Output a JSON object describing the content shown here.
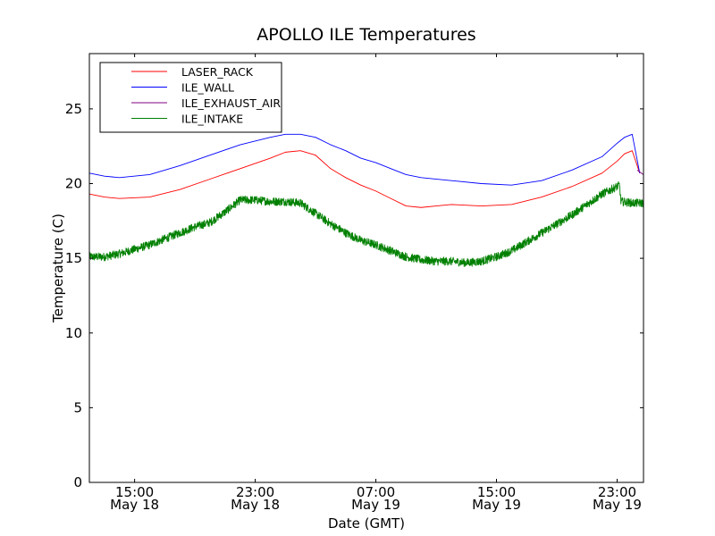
{
  "chart_data": {
    "type": "line",
    "title": "APOLLO ILE Temperatures",
    "xlabel": "Date (GMT)",
    "ylabel": "Temperature (C)",
    "ylim": [
      0,
      28.7
    ],
    "xlim": [
      "2011-05-18 12:00",
      "2011-05-20 00:45"
    ],
    "x_ticks": [
      {
        "x": "2011-05-18 15:00",
        "time": "15:00",
        "date": "May 18"
      },
      {
        "x": "2011-05-18 23:00",
        "time": "23:00",
        "date": "May 18"
      },
      {
        "x": "2011-05-19 07:00",
        "time": "07:00",
        "date": "May 19"
      },
      {
        "x": "2011-05-19 15:00",
        "time": "15:00",
        "date": "May 19"
      },
      {
        "x": "2011-05-19 23:00",
        "time": "23:00",
        "date": "May 19"
      }
    ],
    "y_ticks": [
      0,
      5,
      10,
      15,
      20,
      25
    ],
    "legend_position": "top-left",
    "legend": [
      "LASER_RACK",
      "ILE_WALL",
      "ILE_EXHAUST_AIR",
      "ILE_INTAKE"
    ],
    "series": [
      {
        "name": "LASER_RACK",
        "color": "#ff0000",
        "x": [
          "2011-05-18 12:00",
          "2011-05-18 13:00",
          "2011-05-18 14:00",
          "2011-05-18 16:00",
          "2011-05-18 18:00",
          "2011-05-18 20:00",
          "2011-05-18 22:00",
          "2011-05-19 00:00",
          "2011-05-19 01:00",
          "2011-05-19 02:00",
          "2011-05-19 03:00",
          "2011-05-19 04:00",
          "2011-05-19 05:00",
          "2011-05-19 06:00",
          "2011-05-19 07:00",
          "2011-05-19 08:00",
          "2011-05-19 09:00",
          "2011-05-19 10:00",
          "2011-05-19 11:00",
          "2011-05-19 12:00",
          "2011-05-19 14:00",
          "2011-05-19 16:00",
          "2011-05-19 18:00",
          "2011-05-19 20:00",
          "2011-05-19 22:00",
          "2011-05-19 23:00",
          "2011-05-19 23:30",
          "2011-05-20 00:00",
          "2011-05-20 00:30"
        ],
        "y": [
          19.3,
          19.1,
          19.0,
          19.1,
          19.6,
          20.3,
          21.0,
          21.7,
          22.1,
          22.2,
          21.9,
          21.0,
          20.4,
          19.9,
          19.5,
          19.0,
          18.5,
          18.4,
          18.5,
          18.6,
          18.5,
          18.6,
          19.1,
          19.8,
          20.7,
          21.5,
          22.0,
          22.2,
          20.7
        ]
      },
      {
        "name": "ILE_WALL",
        "color": "#0000ff",
        "x": [
          "2011-05-18 12:00",
          "2011-05-18 13:00",
          "2011-05-18 14:00",
          "2011-05-18 16:00",
          "2011-05-18 18:00",
          "2011-05-18 20:00",
          "2011-05-18 22:00",
          "2011-05-19 00:00",
          "2011-05-19 01:00",
          "2011-05-19 02:00",
          "2011-05-19 03:00",
          "2011-05-19 04:00",
          "2011-05-19 05:00",
          "2011-05-19 06:00",
          "2011-05-19 07:00",
          "2011-05-19 08:00",
          "2011-05-19 09:00",
          "2011-05-19 10:00",
          "2011-05-19 12:00",
          "2011-05-19 14:00",
          "2011-05-19 16:00",
          "2011-05-19 18:00",
          "2011-05-19 20:00",
          "2011-05-19 22:00",
          "2011-05-19 23:00",
          "2011-05-19 23:30",
          "2011-05-20 00:00",
          "2011-05-20 00:30"
        ],
        "y": [
          20.7,
          20.5,
          20.4,
          20.6,
          21.2,
          21.9,
          22.6,
          23.1,
          23.3,
          23.3,
          23.1,
          22.6,
          22.2,
          21.7,
          21.4,
          21.0,
          20.6,
          20.4,
          20.2,
          20.0,
          19.9,
          20.2,
          20.9,
          21.8,
          22.7,
          23.1,
          23.3,
          20.7
        ]
      },
      {
        "name": "ILE_EXHAUST_AIR",
        "color": "#800080",
        "x": [
          "2011-05-20 00:20",
          "2011-05-20 00:45"
        ],
        "y": [
          20.9,
          20.6
        ]
      },
      {
        "name": "ILE_INTAKE",
        "color": "#008000",
        "noisy": true,
        "noise_amplitude": 0.28,
        "x": [
          "2011-05-18 12:00",
          "2011-05-18 13:00",
          "2011-05-18 14:00",
          "2011-05-18 15:00",
          "2011-05-18 16:00",
          "2011-05-18 17:00",
          "2011-05-18 18:00",
          "2011-05-18 19:00",
          "2011-05-18 20:00",
          "2011-05-18 21:00",
          "2011-05-18 22:00",
          "2011-05-18 23:00",
          "2011-05-19 00:00",
          "2011-05-19 01:00",
          "2011-05-19 02:00",
          "2011-05-19 03:00",
          "2011-05-19 04:00",
          "2011-05-19 05:00",
          "2011-05-19 06:00",
          "2011-05-19 07:00",
          "2011-05-19 08:00",
          "2011-05-19 09:00",
          "2011-05-19 10:00",
          "2011-05-19 11:00",
          "2011-05-19 12:00",
          "2011-05-19 13:00",
          "2011-05-19 14:00",
          "2011-05-19 15:00",
          "2011-05-19 16:00",
          "2011-05-19 17:00",
          "2011-05-19 18:00",
          "2011-05-19 19:00",
          "2011-05-19 20:00",
          "2011-05-19 21:00",
          "2011-05-19 22:00",
          "2011-05-19 23:00",
          "2011-05-19 23:10",
          "2011-05-19 23:15",
          "2011-05-20 00:00",
          "2011-05-20 00:45"
        ],
        "y": [
          15.1,
          15.1,
          15.3,
          15.6,
          15.9,
          16.3,
          16.7,
          17.1,
          17.4,
          18.1,
          18.9,
          18.9,
          18.8,
          18.8,
          18.7,
          18.0,
          17.3,
          16.7,
          16.2,
          15.9,
          15.5,
          15.1,
          14.9,
          14.8,
          14.8,
          14.7,
          14.8,
          15.1,
          15.5,
          16.1,
          16.7,
          17.3,
          17.9,
          18.6,
          19.3,
          19.8,
          19.9,
          18.8,
          18.7,
          18.7
        ]
      }
    ]
  }
}
